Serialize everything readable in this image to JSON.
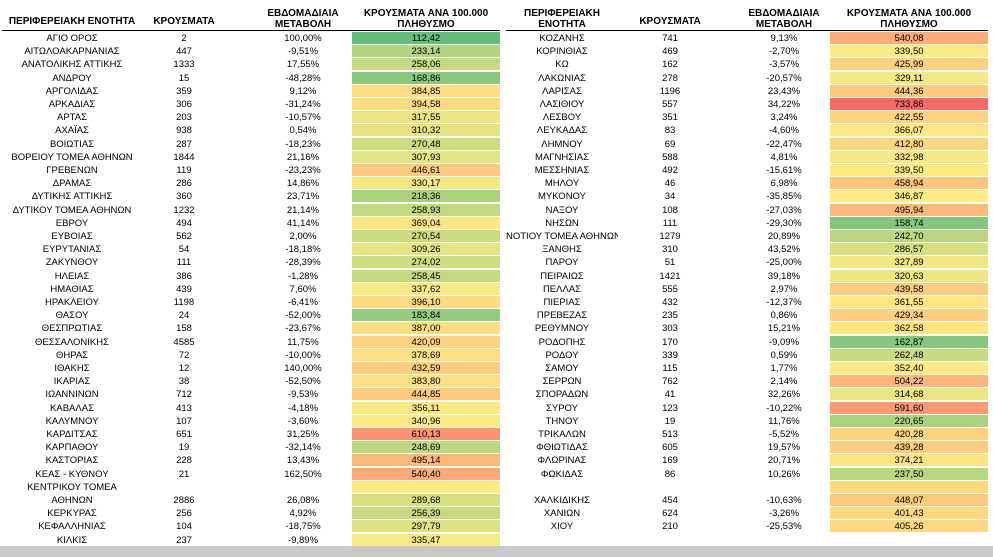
{
  "headers": {
    "region": "ΠΕΡΙΦΕΡΕΙΑΚΗ ΕΝΟΤΗΤΑ",
    "cases": "ΚΡΟΥΣΜΑΤΑ",
    "weekly_line1": "ΕΒΔΟΜΑΔΙΑΙΑ",
    "weekly_line2": "ΜΕΤΑΒΟΛΗ",
    "rate_line1": "ΚΡΟΥΣΜΑΤΑ ΑΝΑ 100.000",
    "rate_line2": "ΠΛΗΘΥΣΜΟ",
    "region2_line1": "ΠΕΡΙΦΕΡΕΙΑΚΗ",
    "region2_line2": "ΕΝΟΤΗΤΑ"
  },
  "left": [
    {
      "region": "ΑΓΙΟ ΟΡΟΣ",
      "cases": "2",
      "change": "100,00%",
      "rate": "112,42"
    },
    {
      "region": "ΑΙΤΩΛΟΑΚΑΡΝΑΝΙΑΣ",
      "cases": "447",
      "change": "-9,51%",
      "rate": "233,14"
    },
    {
      "region": "ΑΝΑΤΟΛΙΚΗΣ ΑΤΤΙΚΗΣ",
      "cases": "1333",
      "change": "17,55%",
      "rate": "258,06"
    },
    {
      "region": "ΑΝΔΡΟΥ",
      "cases": "15",
      "change": "-48,28%",
      "rate": "168,86"
    },
    {
      "region": "ΑΡΓΟΛΙΔΑΣ",
      "cases": "359",
      "change": "9,12%",
      "rate": "384,85"
    },
    {
      "region": "ΑΡΚΑΔΙΑΣ",
      "cases": "306",
      "change": "-31,24%",
      "rate": "394,58"
    },
    {
      "region": "ΑΡΤΑΣ",
      "cases": "203",
      "change": "-10,57%",
      "rate": "317,55"
    },
    {
      "region": "ΑΧΑΪΑΣ",
      "cases": "938",
      "change": "0,54%",
      "rate": "310,32"
    },
    {
      "region": "ΒΟΙΩΤΙΑΣ",
      "cases": "287",
      "change": "-18,23%",
      "rate": "270,48"
    },
    {
      "region": "ΒΟΡΕΙΟΥ ΤΟΜΕΑ ΑΘΗΝΩΝ",
      "cases": "1844",
      "change": "21,16%",
      "rate": "307,93"
    },
    {
      "region": "ΓΡΕΒΕΝΩΝ",
      "cases": "119",
      "change": "-23,23%",
      "rate": "446,61"
    },
    {
      "region": "ΔΡΑΜΑΣ",
      "cases": "286",
      "change": "14,86%",
      "rate": "330,17"
    },
    {
      "region": "ΔΥΤΙΚΗΣ ΑΤΤΙΚΗΣ",
      "cases": "360",
      "change": "23,71%",
      "rate": "218,36"
    },
    {
      "region": "ΔΥΤΙΚΟΥ ΤΟΜΕΑ ΑΘΗΝΩΝ",
      "cases": "1232",
      "change": "21,14%",
      "rate": "258,93"
    },
    {
      "region": "ΕΒΡΟΥ",
      "cases": "494",
      "change": "41,14%",
      "rate": "369,04"
    },
    {
      "region": "ΕΥΒΟΙΑΣ",
      "cases": "562",
      "change": "2,00%",
      "rate": "270,54"
    },
    {
      "region": "ΕΥΡΥΤΑΝΙΑΣ",
      "cases": "54",
      "change": "-18,18%",
      "rate": "309,26"
    },
    {
      "region": "ΖΑΚΥΝΘΟΥ",
      "cases": "111",
      "change": "-28,39%",
      "rate": "274,02"
    },
    {
      "region": "ΗΛΕΙΑΣ",
      "cases": "386",
      "change": "-1,28%",
      "rate": "258,45"
    },
    {
      "region": "ΗΜΑΘΙΑΣ",
      "cases": "439",
      "change": "7,60%",
      "rate": "337,62"
    },
    {
      "region": "ΗΡΑΚΛΕΙΟΥ",
      "cases": "1198",
      "change": "-6,41%",
      "rate": "396,10"
    },
    {
      "region": "ΘΑΣΟΥ",
      "cases": "24",
      "change": "-52,00%",
      "rate": "183,84"
    },
    {
      "region": "ΘΕΣΠΡΩΤΙΑΣ",
      "cases": "158",
      "change": "-23,67%",
      "rate": "387,00"
    },
    {
      "region": "ΘΕΣΣΑΛΟΝΙΚΗΣ",
      "cases": "4585",
      "change": "11,75%",
      "rate": "420,09"
    },
    {
      "region": "ΘΗΡΑΣ",
      "cases": "72",
      "change": "-10,00%",
      "rate": "378,69"
    },
    {
      "region": "ΙΘΑΚΗΣ",
      "cases": "12",
      "change": "140,00%",
      "rate": "432,59"
    },
    {
      "region": "ΙΚΑΡΙΑΣ",
      "cases": "38",
      "change": "-52,50%",
      "rate": "383,80"
    },
    {
      "region": "ΙΩΑΝΝΙΝΩΝ",
      "cases": "712",
      "change": "-9,53%",
      "rate": "444,85"
    },
    {
      "region": "ΚΑΒΑΛΑΣ",
      "cases": "413",
      "change": "-4,18%",
      "rate": "356,11"
    },
    {
      "region": "ΚΑΛΥΜΝΟΥ",
      "cases": "107",
      "change": "-3,60%",
      "rate": "340,96"
    },
    {
      "region": "ΚΑΡΔΙΤΣΑΣ",
      "cases": "651",
      "change": "31,25%",
      "rate": "610,13"
    },
    {
      "region": "ΚΑΡΠΑΘΟΥ",
      "cases": "19",
      "change": "-32,14%",
      "rate": "248,69"
    },
    {
      "region": "ΚΑΣΤΟΡΙΑΣ",
      "cases": "228",
      "change": "13,43%",
      "rate": "495,14"
    },
    {
      "region": "ΚΕΑΣ - ΚΥΘΝΟΥ",
      "cases": "21",
      "change": "162,50%",
      "rate": "540,40"
    },
    {
      "region": "ΚΕΝΤΡΙΚΟΥ ΤΟΜΕΑ",
      "cases": "",
      "change": "",
      "rate": ""
    },
    {
      "region": "ΑΘΗΝΩΝ",
      "cases": "2886",
      "change": "26,08%",
      "rate": "289,68"
    },
    {
      "region": "ΚΕΡΚΥΡΑΣ",
      "cases": "256",
      "change": "4,92%",
      "rate": "256,39"
    },
    {
      "region": "ΚΕΦΑΛΛΗΝΙΑΣ",
      "cases": "104",
      "change": "-18,75%",
      "rate": "297,79"
    },
    {
      "region": "ΚΙΛΚΙΣ",
      "cases": "237",
      "change": "-9,89%",
      "rate": "335,47"
    }
  ],
  "right": [
    {
      "region": "ΚΟΖΑΝΗΣ",
      "cases": "741",
      "change": "9,13%",
      "rate": "540,08"
    },
    {
      "region": "ΚΟΡΙΝΘΙΑΣ",
      "cases": "469",
      "change": "-2,70%",
      "rate": "339,50"
    },
    {
      "region": "ΚΩ",
      "cases": "162",
      "change": "-3,57%",
      "rate": "425,99"
    },
    {
      "region": "ΛΑΚΩΝΙΑΣ",
      "cases": "278",
      "change": "-20,57%",
      "rate": "329,11"
    },
    {
      "region": "ΛΑΡΙΣΑΣ",
      "cases": "1196",
      "change": "23,43%",
      "rate": "444,36"
    },
    {
      "region": "ΛΑΣΙΘΙΟΥ",
      "cases": "557",
      "change": "34,22%",
      "rate": "733,86"
    },
    {
      "region": "ΛΕΣΒΟΥ",
      "cases": "351",
      "change": "3,24%",
      "rate": "422,55"
    },
    {
      "region": "ΛΕΥΚΑΔΑΣ",
      "cases": "83",
      "change": "-4,60%",
      "rate": "366,07"
    },
    {
      "region": "ΛΗΜΝΟΥ",
      "cases": "69",
      "change": "-22,47%",
      "rate": "412,80"
    },
    {
      "region": "ΜΑΓΝΗΣΙΑΣ",
      "cases": "588",
      "change": "4,81%",
      "rate": "332,98"
    },
    {
      "region": "ΜΕΣΣΗΝΙΑΣ",
      "cases": "492",
      "change": "-15,61%",
      "rate": "339,50"
    },
    {
      "region": "ΜΗΛΟΥ",
      "cases": "46",
      "change": "6,98%",
      "rate": "458,94"
    },
    {
      "region": "ΜΥΚΟΝΟΥ",
      "cases": "34",
      "change": "-35,85%",
      "rate": "346,87"
    },
    {
      "region": "ΝΑΞΟΥ",
      "cases": "108",
      "change": "-27,03%",
      "rate": "495,94"
    },
    {
      "region": "ΝΗΣΩΝ",
      "cases": "111",
      "change": "-29,30%",
      "rate": "158,74"
    },
    {
      "region": "ΝΟΤΙΟΥ ΤΟΜΕΑ ΑΘΗΝΩΝ",
      "cases": "1279",
      "change": "20,89%",
      "rate": "242,70"
    },
    {
      "region": "ΞΑΝΘΗΣ",
      "cases": "310",
      "change": "43,52%",
      "rate": "286,57"
    },
    {
      "region": "ΠΑΡΟΥ",
      "cases": "51",
      "change": "-25,00%",
      "rate": "327,89"
    },
    {
      "region": "ΠΕΙΡΑΙΩΣ",
      "cases": "1421",
      "change": "39,18%",
      "rate": "320,63"
    },
    {
      "region": "ΠΕΛΛΑΣ",
      "cases": "555",
      "change": "2,97%",
      "rate": "439,58"
    },
    {
      "region": "ΠΙΕΡΙΑΣ",
      "cases": "432",
      "change": "-12,37%",
      "rate": "361,55"
    },
    {
      "region": "ΠΡΕΒΕΖΑΣ",
      "cases": "235",
      "change": "0,86%",
      "rate": "429,34"
    },
    {
      "region": "ΡΕΘΥΜΝΟΥ",
      "cases": "303",
      "change": "15,21%",
      "rate": "362,58"
    },
    {
      "region": "ΡΟΔΟΠΗΣ",
      "cases": "170",
      "change": "-9,09%",
      "rate": "162,87"
    },
    {
      "region": "ΡΟΔΟΥ",
      "cases": "339",
      "change": "0,59%",
      "rate": "262,48"
    },
    {
      "region": "ΣΑΜΟΥ",
      "cases": "115",
      "change": "1,77%",
      "rate": "352,40"
    },
    {
      "region": "ΣΕΡΡΩΝ",
      "cases": "762",
      "change": "2,14%",
      "rate": "504,22"
    },
    {
      "region": "ΣΠΟΡΑΔΩΝ",
      "cases": "41",
      "change": "32,26%",
      "rate": "314,68"
    },
    {
      "region": "ΣΥΡΟΥ",
      "cases": "123",
      "change": "-10,22%",
      "rate": "591,60"
    },
    {
      "region": "ΤΗΝΟΥ",
      "cases": "19",
      "change": "11,76%",
      "rate": "220,65"
    },
    {
      "region": "ΤΡΙΚΑΛΩΝ",
      "cases": "513",
      "change": "-5,52%",
      "rate": "420,28"
    },
    {
      "region": "ΦΘΙΩΤΙΔΑΣ",
      "cases": "605",
      "change": "19,57%",
      "rate": "439,28"
    },
    {
      "region": "ΦΛΩΡΙΝΑΣ",
      "cases": "169",
      "change": "20,71%",
      "rate": "374,21"
    },
    {
      "region": "ΦΩΚΙΔΑΣ",
      "cases": "86",
      "change": "10,26%",
      "rate": "237,50"
    },
    {
      "region": "",
      "cases": "",
      "change": "",
      "rate": ""
    },
    {
      "region": "ΧΑΛΚΙΔΙΚΗΣ",
      "cases": "454",
      "change": "-10,63%",
      "rate": "448,07"
    },
    {
      "region": "ΧΑΝΙΩΝ",
      "cases": "624",
      "change": "-3,26%",
      "rate": "401,43"
    },
    {
      "region": "ΧΙΟΥ",
      "cases": "210",
      "change": "-25,53%",
      "rate": "405,26"
    }
  ],
  "colors": {
    "rate_low": "#63be7b",
    "rate_mid": "#ffeb84",
    "rate_high": "#f8696b",
    "bottom_bar": "#c9c9c9"
  }
}
